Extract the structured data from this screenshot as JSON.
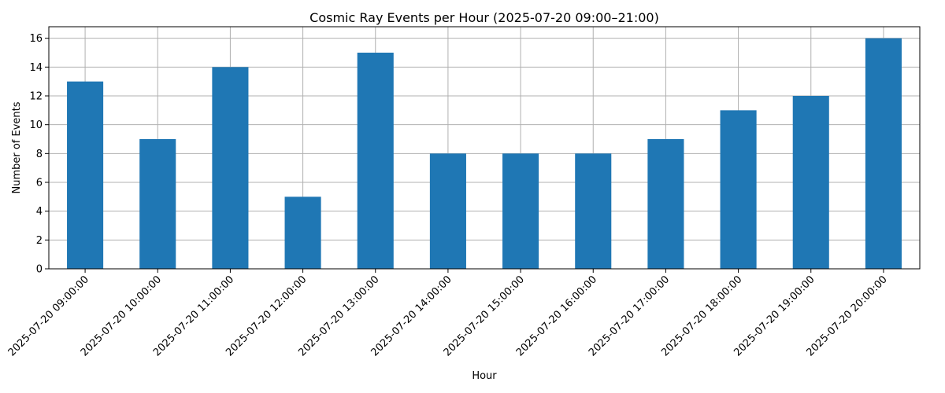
{
  "chart_data": {
    "type": "bar",
    "title": "Cosmic Ray Events per Hour (2025-07-20 09:00–21:00)",
    "xlabel": "Hour",
    "ylabel": "Number of Events",
    "categories": [
      "2025-07-20 09:00:00",
      "2025-07-20 10:00:00",
      "2025-07-20 11:00:00",
      "2025-07-20 12:00:00",
      "2025-07-20 13:00:00",
      "2025-07-20 14:00:00",
      "2025-07-20 15:00:00",
      "2025-07-20 16:00:00",
      "2025-07-20 17:00:00",
      "2025-07-20 18:00:00",
      "2025-07-20 19:00:00",
      "2025-07-20 20:00:00"
    ],
    "values": [
      13,
      9,
      14,
      5,
      15,
      8,
      8,
      8,
      9,
      11,
      12,
      16
    ],
    "ylim": [
      0,
      16.8
    ],
    "yticks": [
      0,
      2,
      4,
      6,
      8,
      10,
      12,
      14,
      16
    ],
    "grid": true,
    "bar_color": "#1f77b4"
  }
}
